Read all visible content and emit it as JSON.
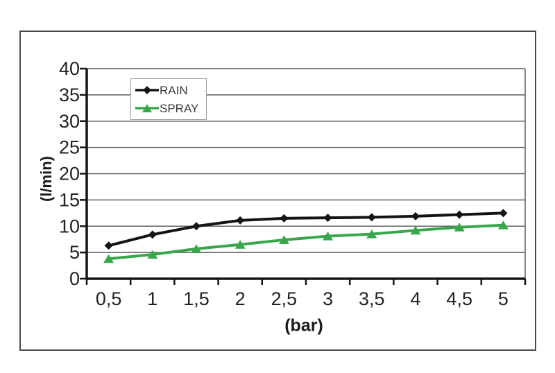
{
  "chart_data": {
    "type": "line",
    "title": "",
    "xlabel": "(bar)",
    "ylabel": "(l/min)",
    "x_categories": [
      "0,5",
      "1",
      "1,5",
      "2",
      "2,5",
      "3",
      "3,5",
      "4",
      "4,5",
      "5"
    ],
    "x_values": [
      0.5,
      1,
      1.5,
      2,
      2.5,
      3,
      3.5,
      4,
      4.5,
      5
    ],
    "ylim": [
      0,
      40
    ],
    "ytick_step": 5,
    "ytick_labels": [
      "0",
      "5",
      "10",
      "15",
      "20",
      "25",
      "30",
      "35",
      "40"
    ],
    "grid": "horizontal",
    "legend_position": "top-left-inside",
    "grid_color": "#5f5f5f",
    "axis_color": "#141414",
    "tick_text_color": "#222222",
    "series": [
      {
        "name": "RAIN",
        "color": "#141414",
        "marker": "diamond",
        "values": [
          6.3,
          8.4,
          10.0,
          11.1,
          11.5,
          11.6,
          11.7,
          11.9,
          12.2,
          12.5
        ]
      },
      {
        "name": "SPRAY",
        "color": "#3aa64c",
        "marker": "triangle",
        "values": [
          3.8,
          4.6,
          5.7,
          6.5,
          7.4,
          8.1,
          8.5,
          9.2,
          9.8,
          10.2
        ]
      }
    ]
  },
  "frame": {
    "border_color": "#4a4a4a",
    "background": "#ffffff"
  }
}
